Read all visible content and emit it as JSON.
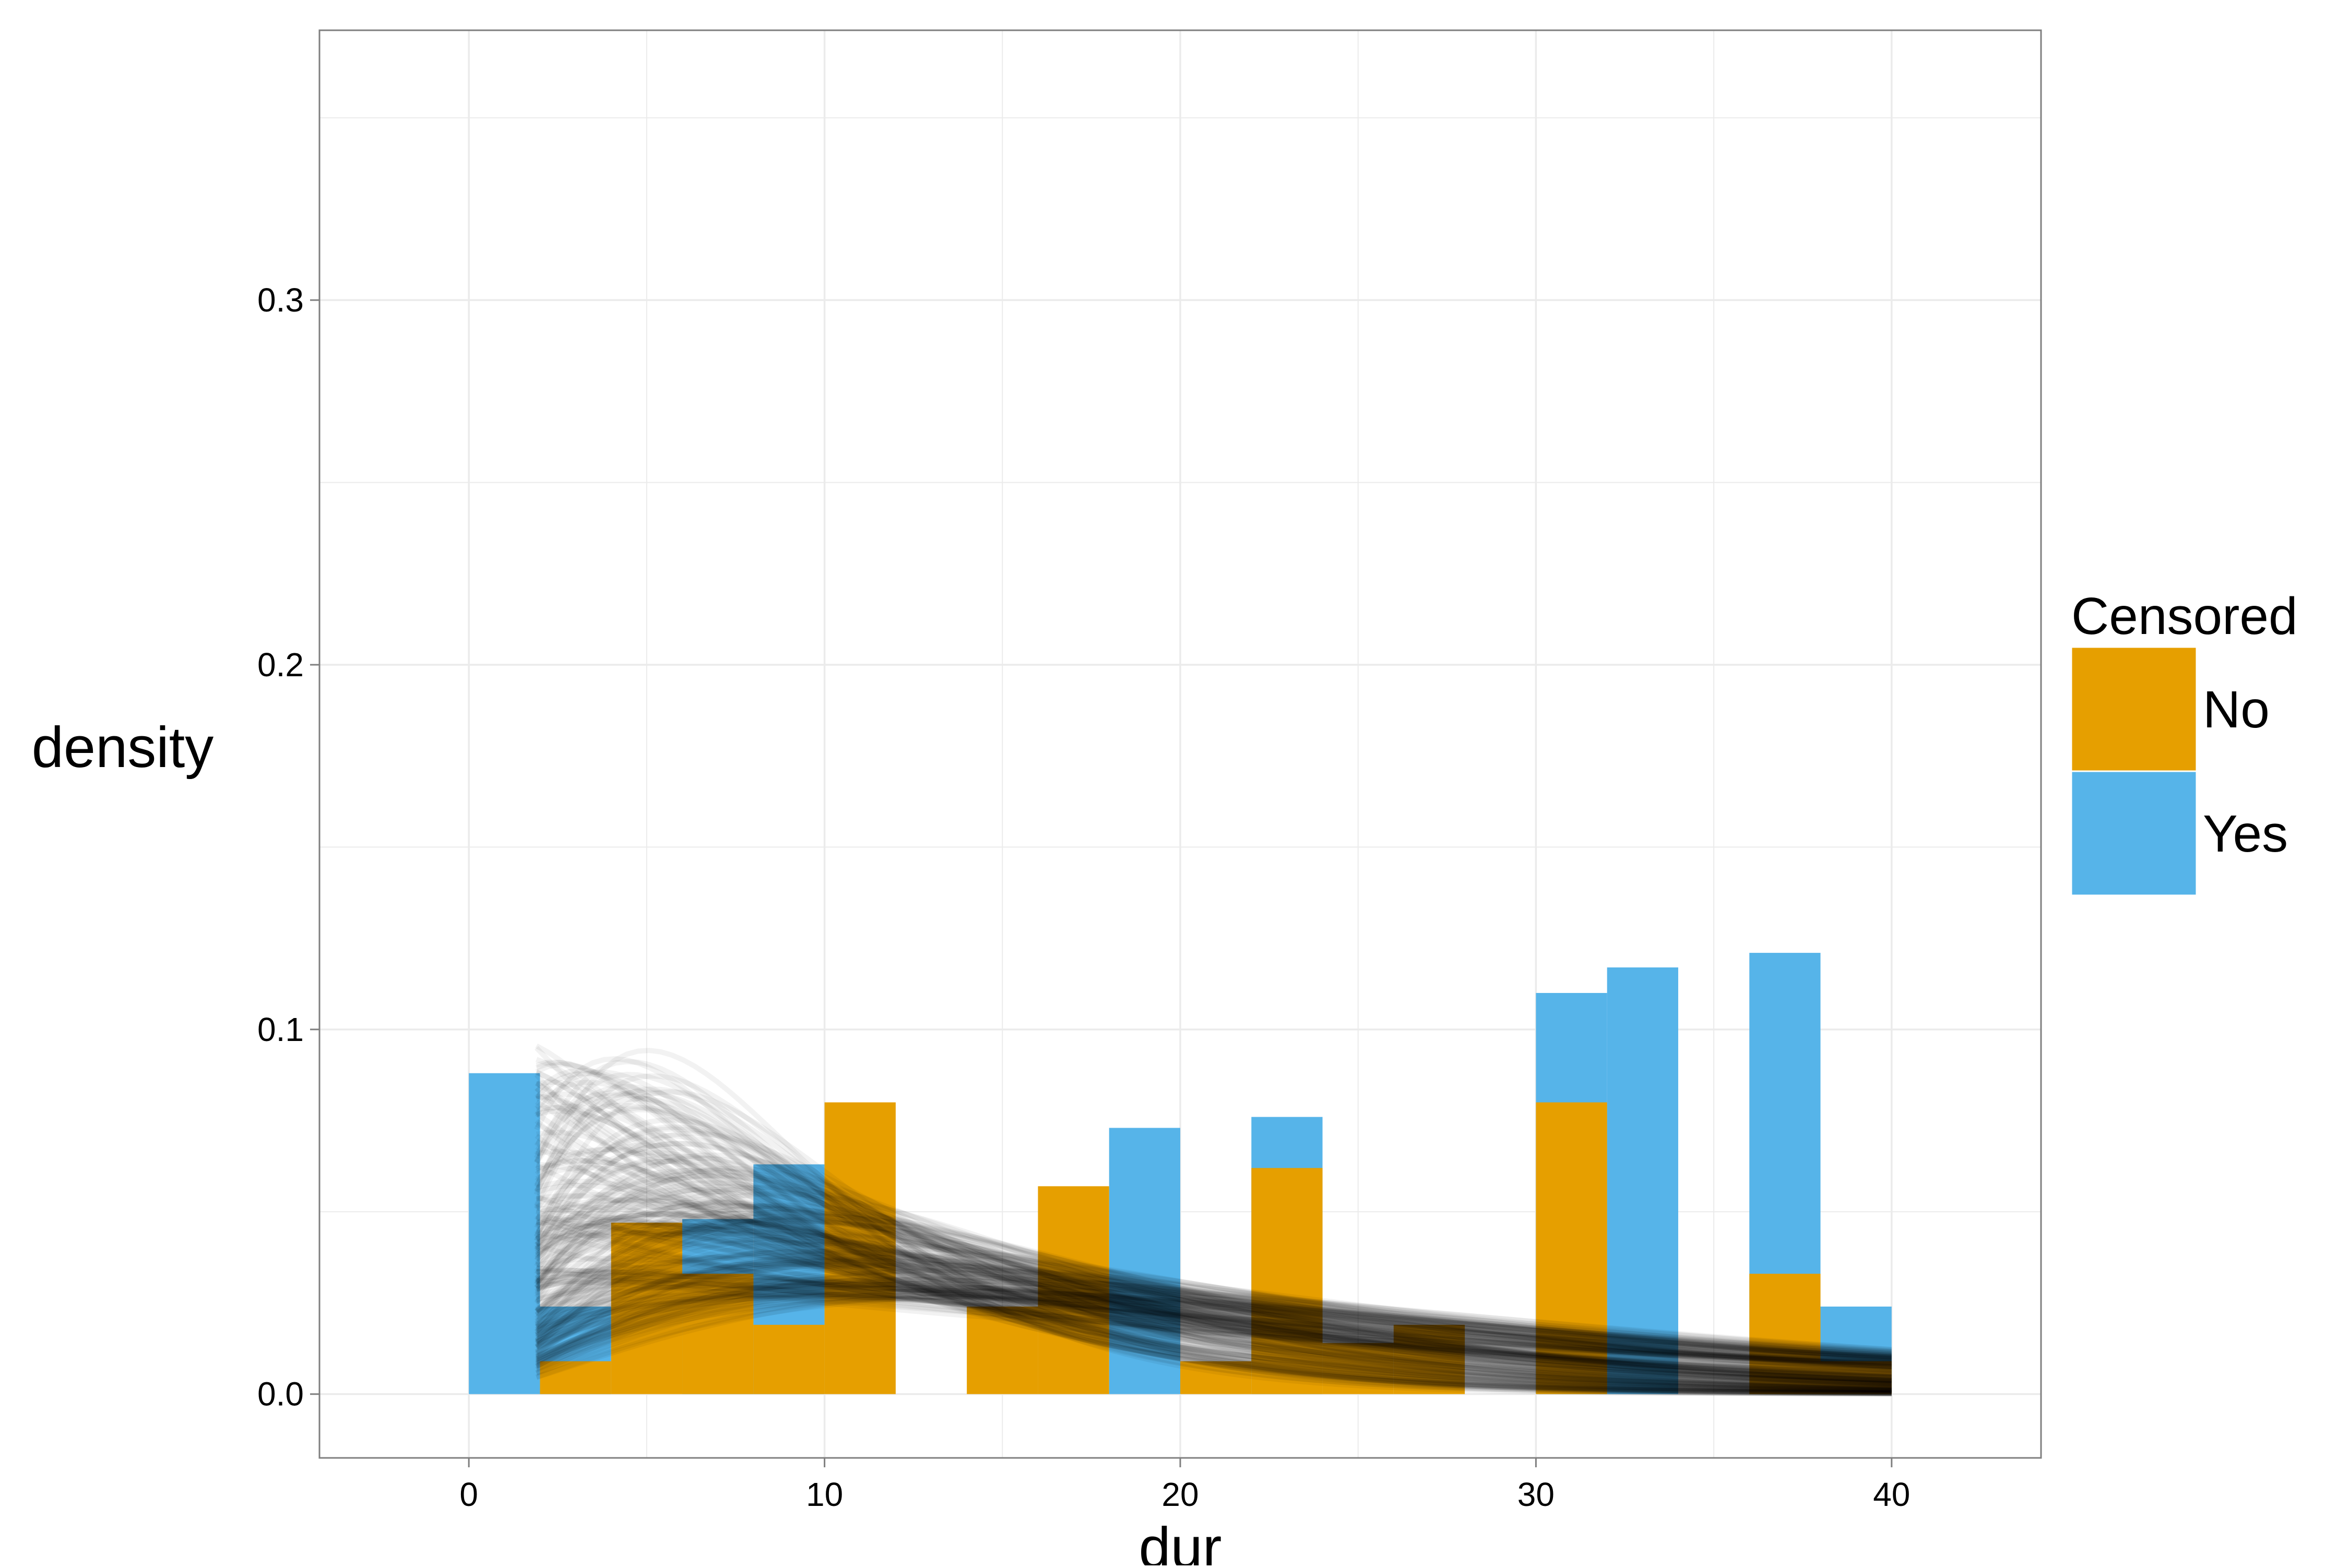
{
  "chart_data": {
    "type": "bar",
    "title": "",
    "xlabel": "dur",
    "ylabel": "density",
    "xlim": [
      -4.2,
      44.2
    ],
    "ylim": [
      -0.0175,
      0.374
    ],
    "x_ticks": [
      0,
      10,
      20,
      30,
      40
    ],
    "x_tick_labels": [
      "0",
      "10",
      "20",
      "30",
      "40"
    ],
    "y_ticks": [
      0.0,
      0.1,
      0.2,
      0.3
    ],
    "y_tick_labels": [
      "0.0",
      "0.1",
      "0.2",
      "0.3"
    ],
    "grid": true,
    "bin_width": 2,
    "bar_position": "identity",
    "colors": {
      "No": "#E69F00",
      "Yes": "#56B4E9",
      "curves": "#000000",
      "panel_border": "#7f7f7f",
      "grid": "#ebebeb"
    },
    "legend": {
      "title": "Censored",
      "position": "right",
      "entries": [
        {
          "label": "No",
          "color": "#E69F00"
        },
        {
          "label": "Yes",
          "color": "#56B4E9"
        }
      ]
    },
    "series": [
      {
        "name": "Yes",
        "color": "#56B4E9",
        "bins": [
          {
            "x_start": 0,
            "x_end": 2,
            "value": 0.088
          },
          {
            "x_start": 2,
            "x_end": 4,
            "value": 0.024
          },
          {
            "x_start": 6,
            "x_end": 8,
            "value": 0.048
          },
          {
            "x_start": 8,
            "x_end": 10,
            "value": 0.063
          },
          {
            "x_start": 18,
            "x_end": 20,
            "value": 0.073
          },
          {
            "x_start": 22,
            "x_end": 24,
            "value": 0.076
          },
          {
            "x_start": 30,
            "x_end": 32,
            "value": 0.11
          },
          {
            "x_start": 32,
            "x_end": 34,
            "value": 0.117
          },
          {
            "x_start": 36,
            "x_end": 38,
            "value": 0.121
          },
          {
            "x_start": 38,
            "x_end": 40,
            "value": 0.024
          }
        ]
      },
      {
        "name": "No",
        "color": "#E69F00",
        "bins": [
          {
            "x_start": 2,
            "x_end": 4,
            "value": 0.009
          },
          {
            "x_start": 4,
            "x_end": 6,
            "value": 0.047
          },
          {
            "x_start": 6,
            "x_end": 8,
            "value": 0.033
          },
          {
            "x_start": 8,
            "x_end": 10,
            "value": 0.019
          },
          {
            "x_start": 10,
            "x_end": 12,
            "value": 0.08
          },
          {
            "x_start": 14,
            "x_end": 16,
            "value": 0.024
          },
          {
            "x_start": 16,
            "x_end": 18,
            "value": 0.057
          },
          {
            "x_start": 20,
            "x_end": 22,
            "value": 0.009
          },
          {
            "x_start": 22,
            "x_end": 24,
            "value": 0.062
          },
          {
            "x_start": 24,
            "x_end": 26,
            "value": 0.014
          },
          {
            "x_start": 26,
            "x_end": 28,
            "value": 0.019
          },
          {
            "x_start": 30,
            "x_end": 32,
            "value": 0.08
          },
          {
            "x_start": 36,
            "x_end": 38,
            "value": 0.033
          },
          {
            "x_start": 38,
            "x_end": 40,
            "value": 0.009
          }
        ]
      }
    ],
    "posterior_curves": {
      "description_type": "gamma_density_draws",
      "x_range": [
        1.9,
        40
      ],
      "count": 240,
      "opacity": 0.05,
      "shape_range": [
        0.9,
        2.6
      ],
      "mean_range": [
        8,
        28
      ]
    }
  }
}
